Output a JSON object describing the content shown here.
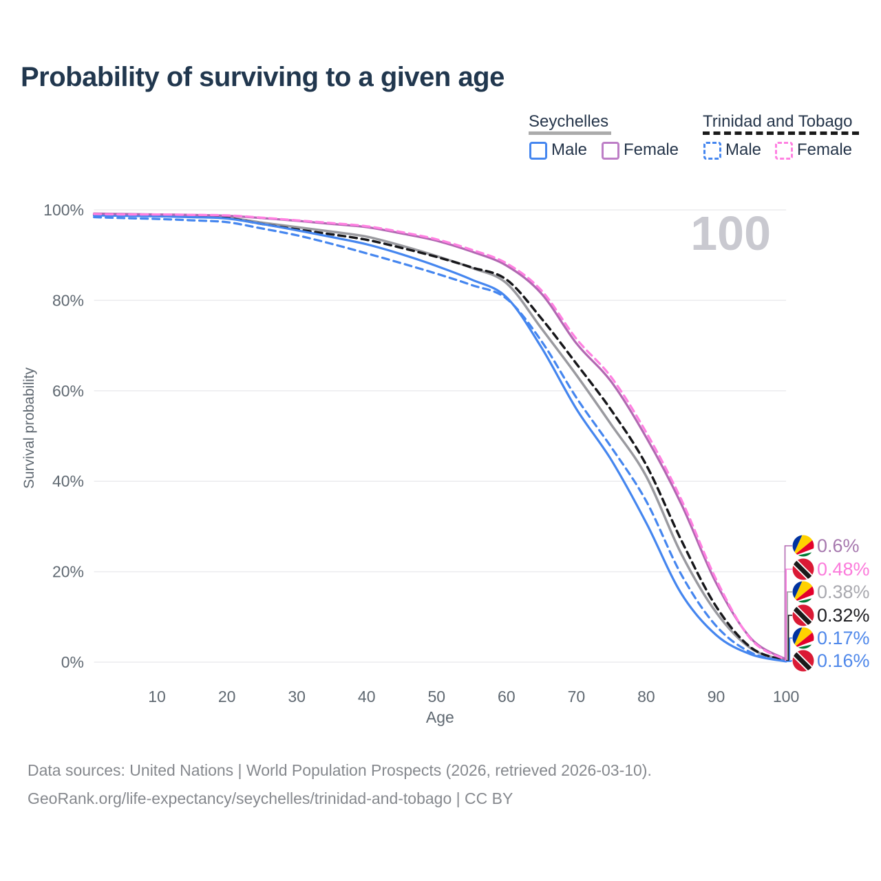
{
  "title": "Probability of surviving to a given age",
  "watermark_age": "100",
  "legend": {
    "groups": [
      {
        "name": "Seychelles",
        "line_style": "solid",
        "line_color": "#ababab",
        "items": [
          {
            "label": "Male",
            "color": "#4586ef",
            "dashed": false
          },
          {
            "label": "Female",
            "color": "#bd7ec6",
            "dashed": false
          }
        ]
      },
      {
        "name": "Trinidad and Tobago",
        "line_style": "dashed",
        "line_color": "#1a1a1a",
        "items": [
          {
            "label": "Male",
            "color": "#4586ef",
            "dashed": true
          },
          {
            "label": "Female",
            "color": "#ff80e1",
            "dashed": true
          }
        ]
      }
    ]
  },
  "axes": {
    "x_label": "Age",
    "y_label": "Survival probability",
    "x_ticks": [
      10,
      20,
      30,
      40,
      50,
      60,
      70,
      80,
      90,
      100
    ],
    "y_ticks": [
      {
        "value": 0,
        "label": "0%"
      },
      {
        "value": 20,
        "label": "20%"
      },
      {
        "value": 40,
        "label": "40%"
      },
      {
        "value": 60,
        "label": "60%"
      },
      {
        "value": 80,
        "label": "80%"
      },
      {
        "value": 100,
        "label": "100%"
      }
    ]
  },
  "chart_data": {
    "type": "line",
    "title": "Probability of surviving to a given age",
    "xlabel": "Age",
    "ylabel": "Survival probability",
    "xlim": [
      1,
      100
    ],
    "ylim": [
      0,
      100
    ],
    "grid": true,
    "x": [
      1,
      5,
      10,
      15,
      20,
      25,
      30,
      35,
      40,
      45,
      50,
      55,
      60,
      65,
      70,
      75,
      80,
      85,
      90,
      95,
      100
    ],
    "series": [
      {
        "name": "Seychelles Both sexes",
        "country": "Seychelles",
        "sex": "Both",
        "color": "#9a9a9f",
        "dashed": false,
        "width": 3.5,
        "values": [
          99.0,
          98.9,
          98.8,
          98.6,
          98.3,
          97.2,
          96.2,
          95.2,
          94.1,
          92.1,
          89.8,
          87.2,
          83.8,
          73.8,
          63.5,
          52.5,
          41.1,
          24.0,
          11.0,
          3.0,
          0.38
        ],
        "end_label": "0.38%",
        "end_label_color": "#a9a9af",
        "label_row": 2,
        "flag": "seychelles"
      },
      {
        "name": "Trinidad and Tobago Both sexes",
        "country": "Trinidad and Tobago",
        "sex": "Both",
        "color": "#17171a",
        "dashed": true,
        "width": 3.5,
        "values": [
          98.9,
          98.8,
          98.7,
          98.5,
          98.2,
          96.9,
          95.7,
          94.6,
          93.4,
          91.6,
          89.6,
          87.3,
          84.6,
          76.0,
          66.0,
          55.7,
          43.6,
          27.0,
          12.3,
          3.2,
          0.32
        ],
        "end_label": "0.32%",
        "end_label_color": "#202024",
        "label_row": 3,
        "flag": "trinidad"
      },
      {
        "name": "Seychelles Male",
        "country": "Seychelles",
        "sex": "Male",
        "color": "#4586ef",
        "dashed": false,
        "width": 3.25,
        "values": [
          98.8,
          98.7,
          98.6,
          98.4,
          98.1,
          96.9,
          95.5,
          94.0,
          92.4,
          90.2,
          87.6,
          84.6,
          80.7,
          69.6,
          56.0,
          44.7,
          30.8,
          15.2,
          6.0,
          1.7,
          0.17
        ],
        "end_label": "0.17%",
        "end_label_color": "#4f88ea",
        "label_row": 4,
        "flag": "seychelles"
      },
      {
        "name": "Trinidad and Tobago Male",
        "country": "Trinidad and Tobago",
        "sex": "Male",
        "color": "#4586ef",
        "dashed": true,
        "width": 3.25,
        "values": [
          98.4,
          98.2,
          98.0,
          97.7,
          97.3,
          95.9,
          94.4,
          92.5,
          90.4,
          88.2,
          85.9,
          83.4,
          80.4,
          71.0,
          58.5,
          47.5,
          35.6,
          19.4,
          8.0,
          2.1,
          0.16
        ],
        "end_label": "0.16%",
        "end_label_color": "#4f88ea",
        "label_row": 5,
        "flag": "trinidad"
      },
      {
        "name": "Seychelles Female",
        "country": "Seychelles",
        "sex": "Female",
        "color": "#b168b1",
        "dashed": false,
        "width": 3.25,
        "values": [
          99.2,
          99.1,
          99.0,
          98.9,
          98.7,
          98.2,
          97.6,
          96.9,
          96.2,
          94.8,
          93.2,
          90.8,
          87.7,
          81.5,
          70.5,
          62.0,
          49.7,
          35.0,
          17.5,
          5.2,
          0.6
        ],
        "end_label": "0.6%",
        "end_label_color": "#a678ae",
        "label_row": 0,
        "flag": "seychelles"
      },
      {
        "name": "Trinidad and Tobago Female",
        "country": "Trinidad and Tobago",
        "sex": "Female",
        "color": "#ff80e1",
        "dashed": true,
        "width": 3.25,
        "values": [
          99.1,
          99.0,
          99.0,
          98.9,
          98.8,
          98.3,
          97.7,
          97.1,
          96.4,
          95.1,
          93.5,
          91.2,
          88.2,
          82.2,
          71.5,
          63.0,
          50.8,
          36.0,
          18.3,
          5.0,
          0.48
        ],
        "end_label": "0.48%",
        "end_label_color": "#fb7bdb",
        "label_row": 1,
        "flag": "trinidad"
      }
    ],
    "legend_position": "top-right",
    "annotations": {
      "hover_age": "100"
    }
  },
  "colors": {
    "grid": "#ebebee",
    "tick_text": "#5f6871",
    "watermark": "#c9c9d0",
    "flag_seychelles": [
      "#0032a0",
      "#ffd100",
      "#e4002b",
      "#ffffff",
      "#007a33"
    ],
    "flag_trinidad": [
      "#da1a35",
      "#ffffff",
      "#1a1a1a"
    ]
  },
  "footer": {
    "line1": "Data sources: United Nations | World Population Prospects (2026, retrieved 2026-03-10).",
    "line2": "GeoRank.org/life-expectancy/seychelles/trinidad-and-tobago | CC BY"
  }
}
